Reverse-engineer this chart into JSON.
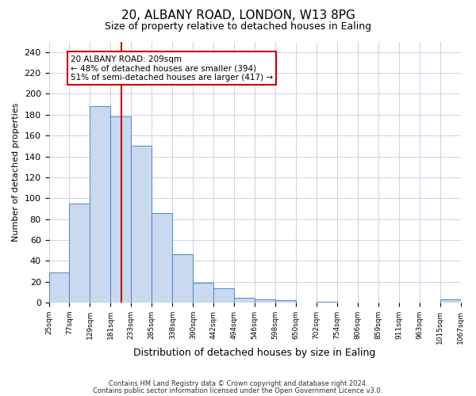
{
  "title": "20, ALBANY ROAD, LONDON, W13 8PG",
  "subtitle": "Size of property relative to detached houses in Ealing",
  "xlabel": "Distribution of detached houses by size in Ealing",
  "ylabel": "Number of detached properties",
  "bin_edges": [
    25,
    77,
    129,
    181,
    233,
    285,
    338,
    390,
    442,
    494,
    546,
    598,
    650,
    702,
    754,
    806,
    859,
    911,
    963,
    1015,
    1067
  ],
  "bar_heights": [
    29,
    95,
    188,
    178,
    150,
    86,
    46,
    19,
    14,
    5,
    3,
    2,
    0,
    1,
    0,
    0,
    0,
    0,
    0,
    3
  ],
  "bar_color": "#c9d9f0",
  "bar_edge_color": "#5b8fc9",
  "vline_x": 209,
  "vline_color": "#cc0000",
  "annotation_line1": "20 ALBANY ROAD: 209sqm",
  "annotation_line2": "← 48% of detached houses are smaller (394)",
  "annotation_line3": "51% of semi-detached houses are larger (417) →",
  "ylim": [
    0,
    250
  ],
  "yticks": [
    0,
    20,
    40,
    60,
    80,
    100,
    120,
    140,
    160,
    180,
    200,
    220,
    240
  ],
  "tick_labels": [
    "25sqm",
    "77sqm",
    "129sqm",
    "181sqm",
    "233sqm",
    "285sqm",
    "338sqm",
    "390sqm",
    "442sqm",
    "494sqm",
    "546sqm",
    "598sqm",
    "650sqm",
    "702sqm",
    "754sqm",
    "806sqm",
    "859sqm",
    "911sqm",
    "963sqm",
    "1015sqm",
    "1067sqm"
  ],
  "footer_line1": "Contains HM Land Registry data © Crown copyright and database right 2024.",
  "footer_line2": "Contains public sector information licensed under the Open Government Licence v3.0.",
  "background_color": "#ffffff",
  "grid_color": "#c8d4e8",
  "title_fontsize": 11,
  "subtitle_fontsize": 9,
  "xlabel_fontsize": 9,
  "ylabel_fontsize": 8,
  "tick_fontsize": 6.5,
  "footer_fontsize": 6,
  "annotation_fontsize": 7.5
}
